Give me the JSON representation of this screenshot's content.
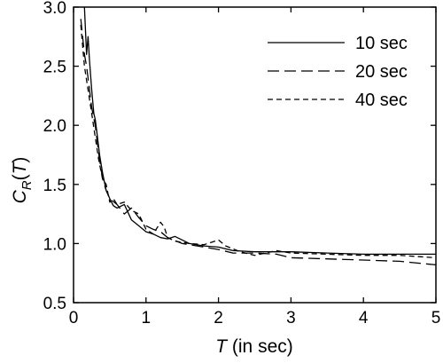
{
  "chart_data": {
    "type": "line",
    "title": "",
    "xlabel_italic": "T",
    "xlabel_rest": " (in sec)",
    "ylabel_main": "C",
    "ylabel_sub": "R",
    "ylabel_open": "(",
    "ylabel_arg": "T",
    "ylabel_close": ")",
    "xlim": [
      0,
      5
    ],
    "ylim": [
      0.5,
      3.0
    ],
    "xticks": [
      0,
      1,
      2,
      3,
      4,
      5
    ],
    "yticks": [
      0.5,
      1.0,
      1.5,
      2.0,
      2.5,
      3.0
    ],
    "xtick_labels": [
      "0",
      "1",
      "2",
      "3",
      "4",
      "5"
    ],
    "ytick_labels": [
      "0.5",
      "1.0",
      "1.5",
      "2.0",
      "2.5",
      "3.0"
    ],
    "grid": false,
    "legend_position": "top-right",
    "series": [
      {
        "name": "10 sec",
        "dash": "solid",
        "x": [
          0.15,
          0.18,
          0.2,
          0.22,
          0.25,
          0.28,
          0.3,
          0.33,
          0.36,
          0.4,
          0.45,
          0.5,
          0.55,
          0.6,
          0.7,
          0.8,
          0.9,
          1.0,
          1.1,
          1.2,
          1.3,
          1.4,
          1.5,
          1.6,
          1.8,
          2.0,
          2.2,
          2.5,
          2.8,
          3.0,
          3.5,
          4.0,
          4.5,
          5.0
        ],
        "y": [
          3.0,
          2.6,
          2.75,
          2.55,
          2.3,
          2.1,
          2.05,
          1.9,
          1.75,
          1.6,
          1.45,
          1.38,
          1.32,
          1.3,
          1.33,
          1.2,
          1.15,
          1.1,
          1.08,
          1.05,
          1.04,
          1.06,
          1.03,
          1.0,
          0.98,
          0.97,
          0.94,
          0.93,
          0.93,
          0.93,
          0.92,
          0.91,
          0.91,
          0.91
        ]
      },
      {
        "name": "20 sec",
        "dash": "long-dash",
        "x": [
          0.1,
          0.15,
          0.18,
          0.2,
          0.25,
          0.3,
          0.35,
          0.4,
          0.45,
          0.5,
          0.6,
          0.7,
          0.8,
          0.9,
          1.0,
          1.1,
          1.2,
          1.3,
          1.5,
          1.8,
          2.0,
          2.2,
          2.5,
          2.8,
          3.0,
          3.5,
          4.0,
          4.5,
          5.0
        ],
        "y": [
          2.9,
          2.6,
          2.5,
          2.4,
          2.15,
          2.0,
          1.75,
          1.55,
          1.45,
          1.38,
          1.33,
          1.25,
          1.3,
          1.22,
          1.15,
          1.12,
          1.1,
          1.05,
          1.0,
          0.97,
          0.95,
          0.92,
          0.92,
          0.91,
          0.88,
          0.87,
          0.86,
          0.85,
          0.82
        ]
      },
      {
        "name": "40 sec",
        "dash": "short-dash",
        "x": [
          0.1,
          0.15,
          0.2,
          0.25,
          0.3,
          0.35,
          0.4,
          0.45,
          0.5,
          0.55,
          0.6,
          0.7,
          0.8,
          0.9,
          1.0,
          1.1,
          1.2,
          1.25,
          1.3,
          1.4,
          1.6,
          1.8,
          2.0,
          2.1,
          2.3,
          2.5,
          2.8,
          3.0,
          3.5,
          4.0,
          4.5,
          5.0
        ],
        "y": [
          2.85,
          2.5,
          2.3,
          2.1,
          1.9,
          1.7,
          1.55,
          1.5,
          1.35,
          1.38,
          1.33,
          1.35,
          1.28,
          1.25,
          1.12,
          1.08,
          1.18,
          1.14,
          1.05,
          1.02,
          1.0,
          0.99,
          1.03,
          0.98,
          0.93,
          0.9,
          0.94,
          0.92,
          0.91,
          0.9,
          0.9,
          0.88
        ]
      }
    ]
  }
}
